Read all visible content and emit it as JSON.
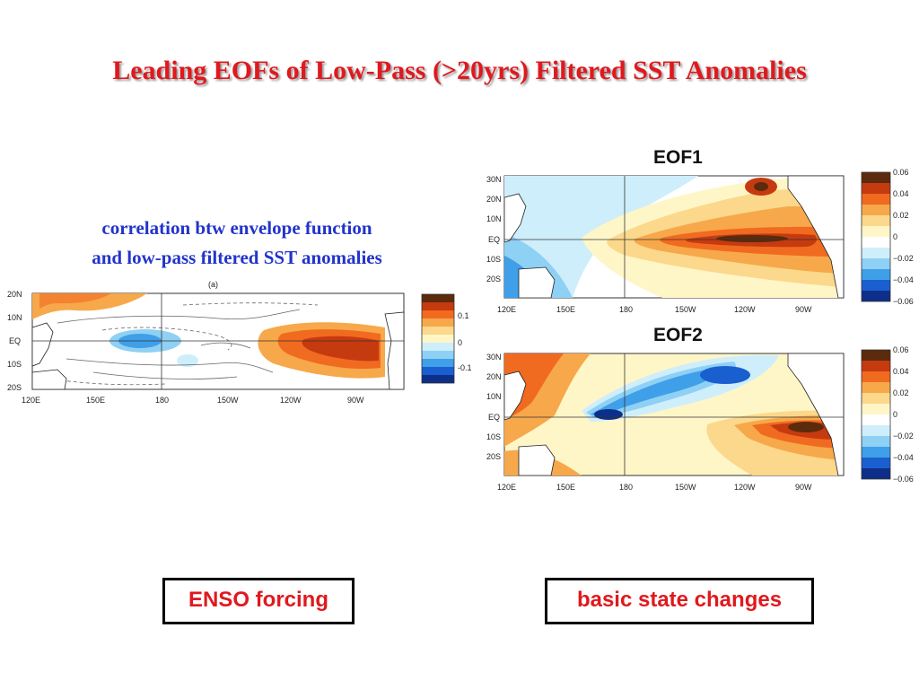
{
  "title": "Leading EOFs of Low-Pass (>20yrs) Filtered SST Anomalies",
  "caption": {
    "line1": "correlation btw envelope function",
    "line2": "and low-pass filtered SST anomalies"
  },
  "left_map": {
    "panel_label": "(a)",
    "lat_labels": [
      "20N",
      "10N",
      "EQ",
      "10S",
      "20S"
    ],
    "lon_labels": [
      "120E",
      "150E",
      "180",
      "150W",
      "120W",
      "90W"
    ],
    "colorbar_labels": [
      "0.1",
      "0",
      "-0.1"
    ]
  },
  "eof1": {
    "label": "EOF1",
    "lat_labels": [
      "30N",
      "20N",
      "10N",
      "EQ",
      "10S",
      "20S"
    ],
    "lon_labels": [
      "120E",
      "150E",
      "180",
      "150W",
      "120W",
      "90W"
    ],
    "colorbar_labels": [
      "0.06",
      "0.04",
      "0.02",
      "0",
      "−0.02",
      "−0.04",
      "−0.06"
    ]
  },
  "eof2": {
    "label": "EOF2",
    "lat_labels": [
      "30N",
      "20N",
      "10N",
      "EQ",
      "10S",
      "20S"
    ],
    "lon_labels": [
      "120E",
      "150E",
      "180",
      "150W",
      "120W",
      "90W"
    ],
    "colorbar_labels": [
      "0.06",
      "0.04",
      "0.02",
      "0",
      "−0.02",
      "−0.04",
      "−0.06"
    ]
  },
  "colors": {
    "title": "#e0191e",
    "caption": "#2233cc",
    "scale": [
      "#5c2a0c",
      "#c63a10",
      "#f06a20",
      "#f7a84a",
      "#fbd88c",
      "#fff6c8",
      "#ffffff",
      "#cfeefb",
      "#8fd0f5",
      "#3f9fe8",
      "#1a5fcf",
      "#0d2f8a"
    ]
  },
  "boxes": {
    "left": "ENSO forcing",
    "right": "basic state changes"
  }
}
